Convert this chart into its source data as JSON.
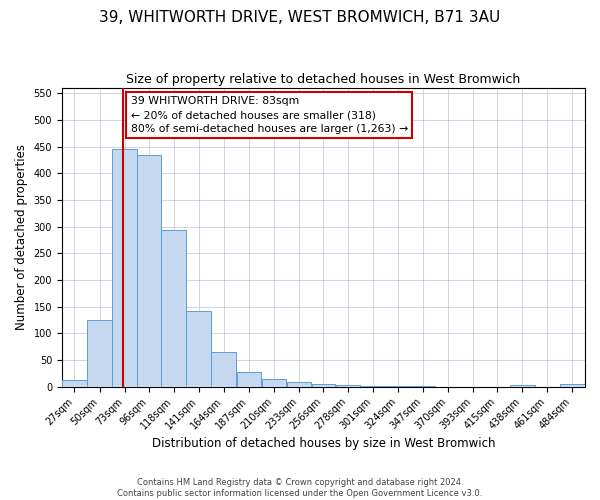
{
  "title": "39, WHITWORTH DRIVE, WEST BROMWICH, B71 3AU",
  "subtitle": "Size of property relative to detached houses in West Bromwich",
  "xlabel": "Distribution of detached houses by size in West Bromwich",
  "ylabel": "Number of detached properties",
  "footer_line1": "Contains HM Land Registry data © Crown copyright and database right 2024.",
  "footer_line2": "Contains public sector information licensed under the Open Government Licence v3.0.",
  "bin_labels": [
    "27sqm",
    "50sqm",
    "73sqm",
    "96sqm",
    "118sqm",
    "141sqm",
    "164sqm",
    "187sqm",
    "210sqm",
    "233sqm",
    "256sqm",
    "278sqm",
    "301sqm",
    "324sqm",
    "347sqm",
    "370sqm",
    "393sqm",
    "415sqm",
    "438sqm",
    "461sqm",
    "484sqm"
  ],
  "bar_heights": [
    13,
    125,
    445,
    435,
    293,
    143,
    65,
    28,
    14,
    9,
    6,
    3,
    1,
    1,
    1,
    0,
    0,
    0,
    4,
    0,
    6
  ],
  "bar_color": "#c5d8f0",
  "bar_edge_color": "#5a9fd4",
  "vline_x": 83,
  "bin_edges_values": [
    27,
    50,
    73,
    96,
    118,
    141,
    164,
    187,
    210,
    233,
    256,
    278,
    301,
    324,
    347,
    370,
    393,
    415,
    438,
    461,
    484,
    507
  ],
  "annotation_text_line1": "39 WHITWORTH DRIVE: 83sqm",
  "annotation_text_line2": "← 20% of detached houses are smaller (318)",
  "annotation_text_line3": "80% of semi-detached houses are larger (1,263) →",
  "annotation_box_color": "#ffffff",
  "annotation_box_edge_color": "#cc0000",
  "vline_color": "#cc0000",
  "ylim": [
    0,
    560
  ],
  "yticks": [
    0,
    50,
    100,
    150,
    200,
    250,
    300,
    350,
    400,
    450,
    500,
    550
  ],
  "grid_color": "#aaaacc",
  "background_color": "#ffffff",
  "title_fontsize": 11,
  "subtitle_fontsize": 9,
  "tick_fontsize": 7,
  "label_fontsize": 8.5
}
